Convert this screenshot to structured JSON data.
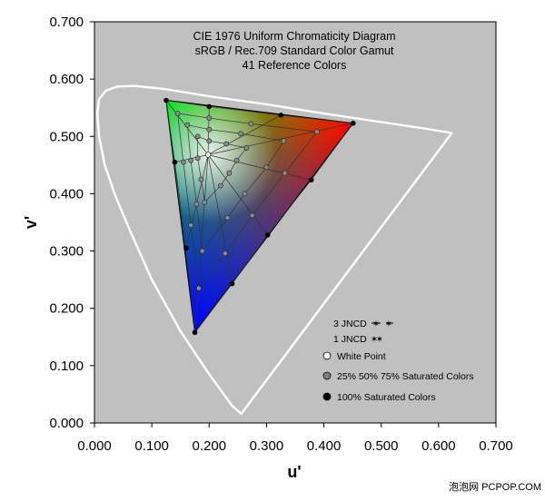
{
  "chart_data": {
    "type": "scatter",
    "title_lines": [
      "CIE 1976 Uniform Chromaticity Diagram",
      "sRGB / Rec.709 Standard Color Gamut",
      "41 Reference Colors"
    ],
    "xlabel": "u'",
    "ylabel": "v'",
    "xlim": [
      0,
      0.7
    ],
    "ylim": [
      0,
      0.7
    ],
    "x_ticks": [
      "0.000",
      "0.100",
      "0.200",
      "0.300",
      "0.400",
      "0.500",
      "0.600",
      "0.700"
    ],
    "y_ticks": [
      "0.000",
      "0.100",
      "0.200",
      "0.300",
      "0.400",
      "0.500",
      "0.600",
      "0.700"
    ],
    "grid": false,
    "plot_background": "#c0c0c0",
    "spectral_locus": [
      [
        0.256,
        0.016
      ],
      [
        0.24,
        0.03
      ],
      [
        0.2,
        0.085
      ],
      [
        0.15,
        0.16
      ],
      [
        0.1,
        0.25
      ],
      [
        0.06,
        0.34
      ],
      [
        0.035,
        0.4
      ],
      [
        0.018,
        0.45
      ],
      [
        0.008,
        0.5
      ],
      [
        0.005,
        0.54
      ],
      [
        0.008,
        0.565
      ],
      [
        0.02,
        0.58
      ],
      [
        0.04,
        0.587
      ],
      [
        0.07,
        0.588
      ],
      [
        0.12,
        0.583
      ],
      [
        0.2,
        0.57
      ],
      [
        0.3,
        0.556
      ],
      [
        0.4,
        0.54
      ],
      [
        0.5,
        0.525
      ],
      [
        0.58,
        0.513
      ],
      [
        0.623,
        0.506
      ]
    ],
    "white_point": [
      0.198,
      0.468
    ],
    "primaries": {
      "red": [
        0.451,
        0.523
      ],
      "green": [
        0.125,
        0.563
      ],
      "blue": [
        0.175,
        0.158
      ]
    },
    "series": [
      {
        "name": "100% Saturated Colors",
        "points": [
          [
            0.125,
            0.563
          ],
          [
            0.2,
            0.552
          ],
          [
            0.325,
            0.537
          ],
          [
            0.451,
            0.523
          ],
          [
            0.378,
            0.424
          ],
          [
            0.302,
            0.328
          ],
          [
            0.24,
            0.243
          ],
          [
            0.175,
            0.158
          ],
          [
            0.16,
            0.305
          ],
          [
            0.14,
            0.455
          ]
        ]
      },
      {
        "name": "25% 50% 75% Saturated Colors",
        "points": [
          [
            0.145,
            0.54
          ],
          [
            0.2,
            0.532
          ],
          [
            0.273,
            0.522
          ],
          [
            0.388,
            0.508
          ],
          [
            0.332,
            0.436
          ],
          [
            0.275,
            0.362
          ],
          [
            0.228,
            0.296
          ],
          [
            0.182,
            0.235
          ],
          [
            0.168,
            0.345
          ],
          [
            0.155,
            0.455
          ],
          [
            0.162,
            0.52
          ],
          [
            0.2,
            0.512
          ],
          [
            0.255,
            0.505
          ],
          [
            0.33,
            0.492
          ],
          [
            0.3,
            0.446
          ],
          [
            0.262,
            0.4
          ],
          [
            0.232,
            0.358
          ],
          [
            0.188,
            0.3
          ],
          [
            0.178,
            0.382
          ],
          [
            0.168,
            0.458
          ],
          [
            0.18,
            0.5
          ],
          [
            0.2,
            0.492
          ],
          [
            0.23,
            0.487
          ],
          [
            0.265,
            0.48
          ],
          [
            0.248,
            0.458
          ],
          [
            0.235,
            0.436
          ],
          [
            0.22,
            0.414
          ],
          [
            0.192,
            0.385
          ],
          [
            0.186,
            0.425
          ],
          [
            0.18,
            0.462
          ]
        ]
      }
    ],
    "legend": {
      "placement": "bottom-right",
      "jncd_3": "3 JNCD",
      "jncd_1": "1 JNCD",
      "entries": [
        {
          "label": "White Point",
          "marker": "white"
        },
        {
          "label": "25% 50% 75% Saturated Colors",
          "marker": "gray"
        },
        {
          "label": "100% Saturated Colors",
          "marker": "black"
        }
      ]
    }
  },
  "watermark": "泡泡网 PCPOP.COM"
}
